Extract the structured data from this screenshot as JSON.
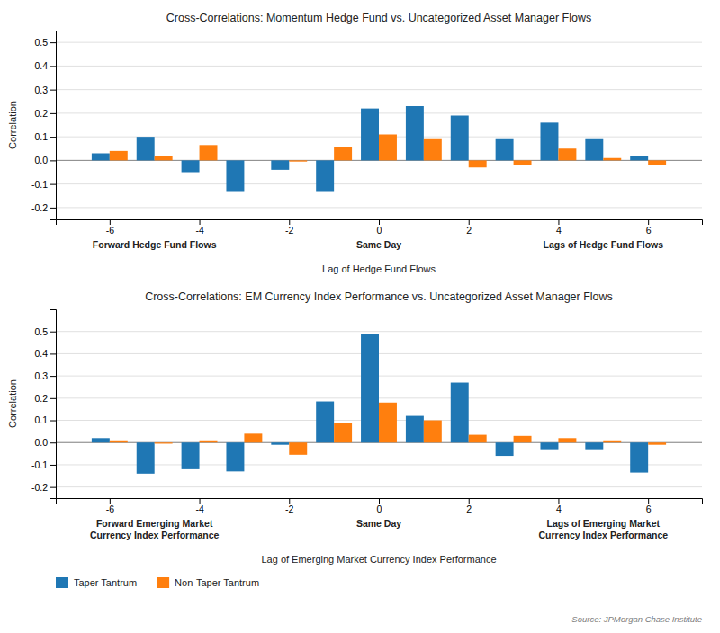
{
  "chart_data": [
    {
      "type": "bar",
      "title": "Cross-Correlations: Momentum Hedge Fund vs. Uncategorized Asset Manager Flows",
      "xlabel": "Lag of Hedge Fund Flows",
      "ylabel": "Correlation",
      "x": [
        -6,
        -5,
        -4,
        -3,
        -2,
        -1,
        0,
        1,
        2,
        3,
        4,
        5,
        6
      ],
      "series": [
        {
          "name": "Taper Tantrum",
          "values": [
            0.03,
            0.1,
            -0.05,
            -0.13,
            -0.04,
            -0.13,
            0.22,
            0.23,
            0.19,
            0.09,
            0.16,
            0.09,
            0.02
          ]
        },
        {
          "name": "Non-Taper Tantrum",
          "values": [
            0.04,
            0.02,
            0.065,
            0.0,
            -0.005,
            0.055,
            0.11,
            0.09,
            -0.03,
            -0.02,
            0.05,
            0.01,
            -0.02
          ]
        }
      ],
      "xlim": [
        -7.2,
        7.2
      ],
      "xticks": [
        -6,
        -4,
        -2,
        0,
        2,
        4,
        6
      ],
      "ylim": [
        -0.25,
        0.55
      ],
      "yticks": [
        -0.2,
        -0.1,
        {
          "value": 0.0,
          "label": "0.0"
        },
        0.1,
        0.2,
        0.3,
        0.4,
        0.5
      ],
      "grid": true,
      "annotations": [
        {
          "text": "Forward Hedge Fund Flows",
          "x": -5.0
        },
        {
          "text": "Same Day",
          "x": 0.0
        },
        {
          "text": "Lags of Hedge Fund Flows",
          "x": 5.0
        }
      ]
    },
    {
      "type": "bar",
      "title": "Cross-Correlations: EM Currency Index Performance vs. Uncategorized Asset Manager Flows",
      "xlabel": "Lag of Emerging Market Currency Index Performance",
      "ylabel": "Correlation",
      "x": [
        -6,
        -5,
        -4,
        -3,
        -2,
        -1,
        0,
        1,
        2,
        3,
        4,
        5,
        6
      ],
      "series": [
        {
          "name": "Taper Tantrum",
          "values": [
            0.02,
            -0.14,
            -0.12,
            -0.13,
            -0.01,
            0.185,
            0.49,
            0.12,
            0.27,
            -0.06,
            -0.03,
            -0.03,
            -0.135
          ]
        },
        {
          "name": "Non-Taper Tantrum",
          "values": [
            0.01,
            -0.005,
            0.01,
            0.04,
            -0.055,
            0.09,
            0.18,
            0.1,
            0.035,
            0.03,
            0.02,
            0.01,
            -0.01
          ]
        }
      ],
      "xlim": [
        -7.2,
        7.2
      ],
      "xticks": [
        -6,
        -4,
        -2,
        0,
        2,
        4,
        6
      ],
      "ylim": [
        -0.25,
        0.6
      ],
      "yticks": [
        -0.2,
        -0.1,
        {
          "value": 0.0,
          "label": "0.0"
        },
        0.1,
        0.2,
        0.3,
        0.4,
        0.5
      ],
      "grid": true,
      "legend": "bottom-left",
      "annotations": [
        {
          "text": "Forward Emerging Market\nCurrency Index Performance",
          "x": -5.0
        },
        {
          "text": "Same Day",
          "x": 0.0
        },
        {
          "text": "Lags of Emerging Market\nCurrency Index Performance",
          "x": 5.0
        }
      ],
      "source": "Source: JPMorgan Chase Institute"
    }
  ]
}
